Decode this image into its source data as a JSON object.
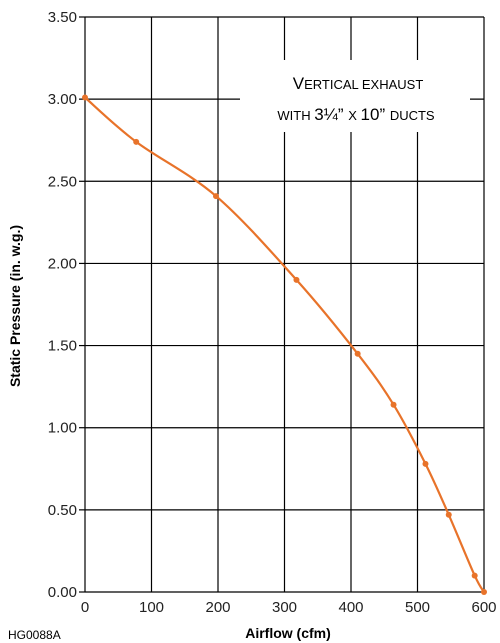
{
  "chart_data": {
    "type": "line",
    "xlabel": "Airflow (cfm)",
    "ylabel": "Static Pressure (in. w.g.)",
    "xlim": [
      0,
      600
    ],
    "ylim": [
      0,
      3.5
    ],
    "x_ticks": [
      "0",
      "100",
      "200",
      "300",
      "400",
      "500",
      "600"
    ],
    "y_ticks": [
      "0.00",
      "0.50",
      "1.00",
      "1.50",
      "2.00",
      "2.50",
      "3.00",
      "3.50"
    ],
    "grid": true,
    "series": [
      {
        "color": "#e8732a",
        "points": [
          {
            "x": 0,
            "y": 3.01
          },
          {
            "x": 77,
            "y": 2.74
          },
          {
            "x": 197,
            "y": 2.41
          },
          {
            "x": 318,
            "y": 1.9
          },
          {
            "x": 410,
            "y": 1.45
          },
          {
            "x": 464,
            "y": 1.14
          },
          {
            "x": 512,
            "y": 0.78
          },
          {
            "x": 547,
            "y": 0.47
          },
          {
            "x": 586,
            "y": 0.1
          },
          {
            "x": 600,
            "y": 0.0
          }
        ]
      }
    ],
    "annotation": {
      "line1_cap": "V",
      "line1_rest": "ERTICAL EXHAUST",
      "line2_pre": "WITH ",
      "line2_size": "3¼” ",
      "line2_x": "X ",
      "line2_size2": "10” ",
      "line2_post": "DUCTS"
    },
    "figure_code": "HG0088A"
  }
}
